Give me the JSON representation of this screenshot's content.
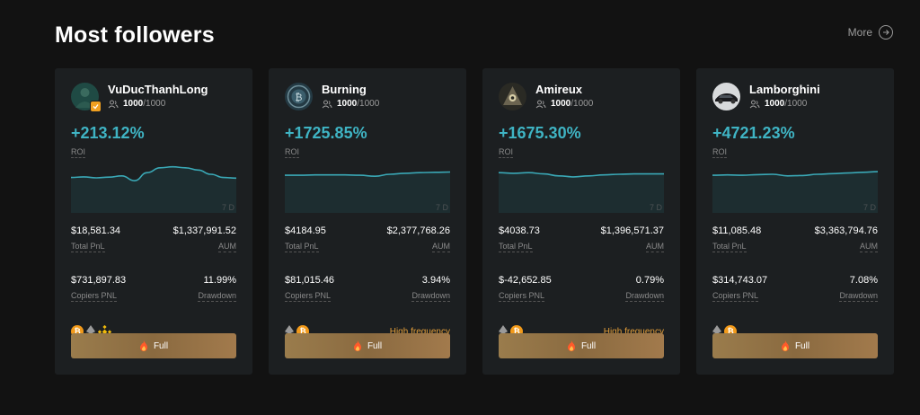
{
  "header": {
    "title": "Most followers",
    "more_label": "More"
  },
  "cards": [
    {
      "name": "VuDucThanhLong",
      "followers": "1000",
      "followers_max": "/1000",
      "roi": "+213.12%",
      "roi_label": "ROI",
      "period": "7 D",
      "total_pnl": "$18,581.34",
      "total_pnl_label": "Total PnL",
      "aum": "$1,337,991.52",
      "aum_label": "AUM",
      "copiers_pnl": "$731,897.83",
      "copiers_pnl_label": "Copiers PNL",
      "drawdown": "11.99%",
      "drawdown_label": "Drawdown",
      "tag": "",
      "button": "Full",
      "series": [
        0.35,
        0.33,
        0.36,
        0.34,
        0.3,
        0.45,
        0.2,
        0.05,
        0.02,
        0.05,
        0.12,
        0.25,
        0.35,
        0.37
      ]
    },
    {
      "name": "Burning",
      "followers": "1000",
      "followers_max": "/1000",
      "roi": "+1725.85%",
      "roi_label": "ROI",
      "period": "7 D",
      "total_pnl": "$4184.95",
      "total_pnl_label": "Total PnL",
      "aum": "$2,377,768.26",
      "aum_label": "AUM",
      "copiers_pnl": "$81,015.46",
      "copiers_pnl_label": "Copiers PNL",
      "drawdown": "3.94%",
      "drawdown_label": "Drawdown",
      "tag": "High frequency",
      "button": "Full",
      "series": [
        0.28,
        0.28,
        0.27,
        0.27,
        0.27,
        0.28,
        0.31,
        0.25,
        0.22,
        0.2,
        0.19,
        0.18
      ]
    },
    {
      "name": "Amireux",
      "followers": "1000",
      "followers_max": "/1000",
      "roi": "+1675.30%",
      "roi_label": "ROI",
      "period": "7 D",
      "total_pnl": "$4038.73",
      "total_pnl_label": "Total PnL",
      "aum": "$1,396,571.37",
      "aum_label": "AUM",
      "copiers_pnl": "$-42,652.85",
      "copiers_pnl_label": "Copiers PNL",
      "drawdown": "0.79%",
      "drawdown_label": "Drawdown",
      "tag": "High frequency",
      "button": "Full",
      "series": [
        0.2,
        0.22,
        0.2,
        0.24,
        0.3,
        0.33,
        0.3,
        0.27,
        0.25,
        0.24,
        0.24,
        0.24
      ]
    },
    {
      "name": "Lamborghini",
      "followers": "1000",
      "followers_max": "/1000",
      "roi": "+4721.23%",
      "roi_label": "ROI",
      "period": "7 D",
      "total_pnl": "$11,085.48",
      "total_pnl_label": "Total PnL",
      "aum": "$3,363,794.76",
      "aum_label": "AUM",
      "copiers_pnl": "$314,743.07",
      "copiers_pnl_label": "Copiers PNL",
      "drawdown": "7.08%",
      "drawdown_label": "Drawdown",
      "tag": "",
      "button": "Full",
      "series": [
        0.28,
        0.27,
        0.28,
        0.26,
        0.25,
        0.3,
        0.29,
        0.25,
        0.23,
        0.21,
        0.19,
        0.17
      ]
    }
  ]
}
